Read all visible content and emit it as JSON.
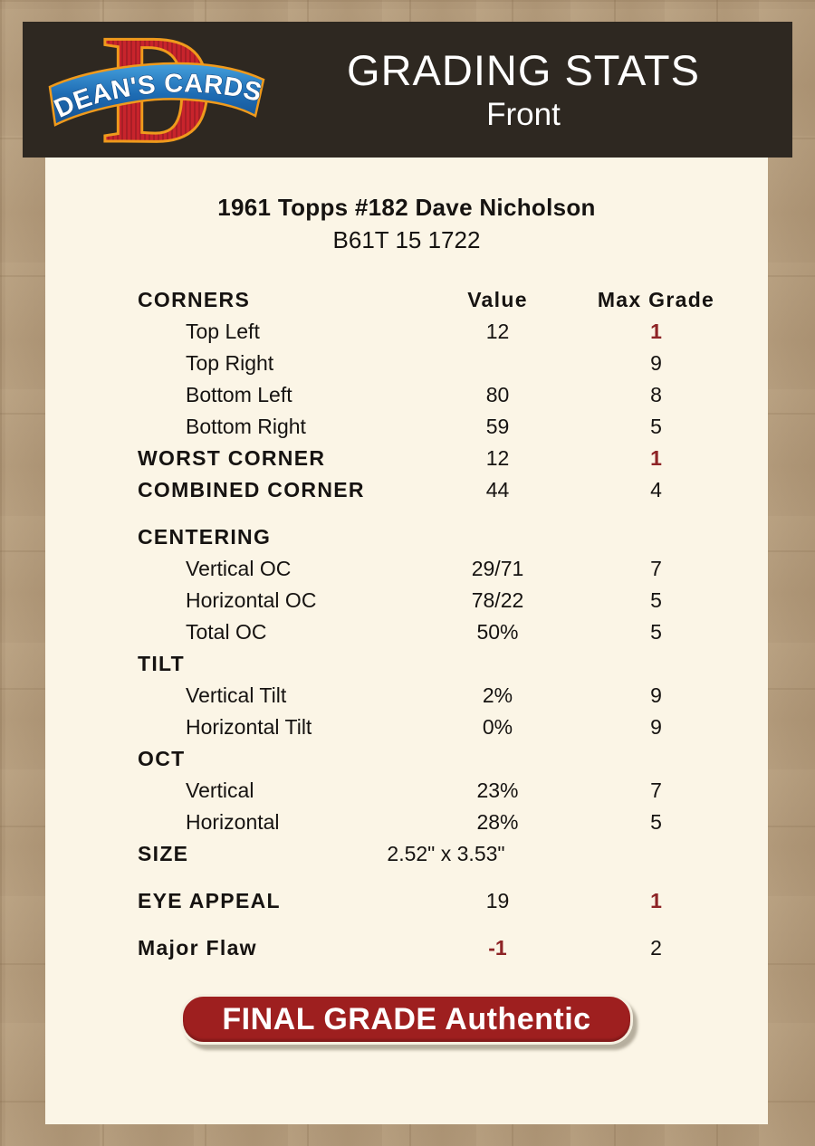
{
  "header": {
    "logo_text": "DEAN'S CARDS",
    "title": "GRADING STATS",
    "subtitle": "Front"
  },
  "card": {
    "title": "1961 Topps #182 Dave Nicholson",
    "code": "B61T 15 1722"
  },
  "table": {
    "rows": [
      {
        "label": "CORNERS",
        "value": "Value",
        "max": "Max Grade",
        "header": true
      },
      {
        "label": "Top Left",
        "value": "12",
        "max": "1",
        "indent": true,
        "max_red": true
      },
      {
        "label": "Top Right",
        "value": "",
        "max": "9",
        "indent": true
      },
      {
        "label": "Bottom Left",
        "value": "80",
        "max": "8",
        "indent": true
      },
      {
        "label": "Bottom Right",
        "value": "59",
        "max": "5",
        "indent": true
      },
      {
        "label": "WORST CORNER",
        "value": "12",
        "max": "1",
        "section": true,
        "max_red": true
      },
      {
        "label": "COMBINED CORNER",
        "value": "44",
        "max": "4",
        "section": true
      },
      {
        "label": "CENTERING",
        "value": "",
        "max": "",
        "section": true,
        "gap_before": true
      },
      {
        "label": "Vertical OC",
        "value": "29/71",
        "max": "7",
        "indent": true
      },
      {
        "label": "Horizontal OC",
        "value": "78/22",
        "max": "5",
        "indent": true
      },
      {
        "label": "Total OC",
        "value": "50%",
        "max": "5",
        "indent": true
      },
      {
        "label": "TILT",
        "value": "",
        "max": "",
        "section": true
      },
      {
        "label": "Vertical Tilt",
        "value": "2%",
        "max": "9",
        "indent": true
      },
      {
        "label": "Horizontal Tilt",
        "value": "0%",
        "max": "9",
        "indent": true
      },
      {
        "label": "OCT",
        "value": "",
        "max": "",
        "section": true
      },
      {
        "label": "Vertical",
        "value": "23%",
        "max": "7",
        "indent": true
      },
      {
        "label": "Horizontal",
        "value": "28%",
        "max": "5",
        "indent": true
      },
      {
        "label": "SIZE",
        "value": "2.52\" x 3.53\"",
        "max": "",
        "section": true,
        "size_row": true
      },
      {
        "label": "EYE APPEAL",
        "value": "19",
        "max": "1",
        "section": true,
        "max_red": true,
        "gap_before": true
      },
      {
        "label": "Major Flaw",
        "value": "-1",
        "max": "2",
        "section": true,
        "value_red": true,
        "gap_before": true
      }
    ]
  },
  "final_grade": {
    "label": "FINAL GRADE Authentic"
  },
  "colors": {
    "page_bg": "#b1997a",
    "panel_bg": "#fbf5e6",
    "header_bg": "#2e2821",
    "accent_red": "#8e2426",
    "button_red": "#9e1f1f"
  }
}
